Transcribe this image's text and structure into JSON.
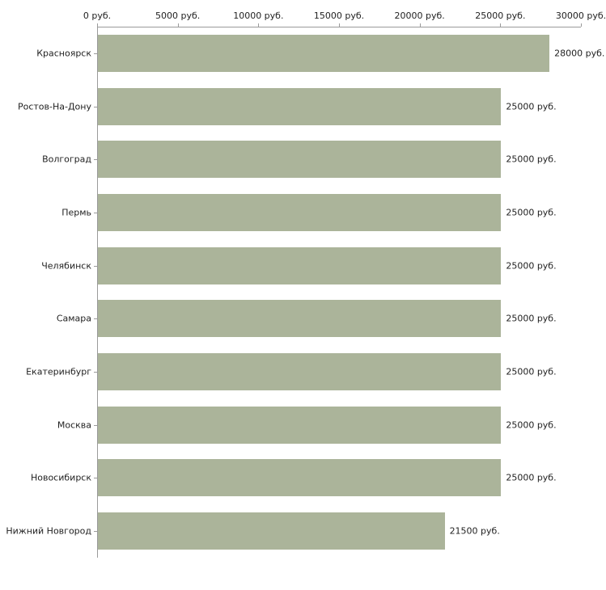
{
  "chart_data": {
    "type": "bar",
    "orientation": "horizontal",
    "title": "",
    "xlabel": "",
    "ylabel": "",
    "categories": [
      "Красноярск",
      "Ростов-На-Дону",
      "Волгоград",
      "Пермь",
      "Челябинск",
      "Самара",
      "Екатеринбург",
      "Москва",
      "Новосибирск",
      "Нижний Новгород"
    ],
    "values": [
      28000,
      25000,
      25000,
      25000,
      25000,
      25000,
      25000,
      25000,
      25000,
      21500
    ],
    "value_labels": [
      "28000 руб.",
      "25000 руб.",
      "25000 руб.",
      "25000 руб.",
      "25000 руб.",
      "25000 руб.",
      "25000 руб.",
      "25000 руб.",
      "25000 руб.",
      "21500 руб."
    ],
    "x_ticks": [
      0,
      5000,
      10000,
      15000,
      20000,
      25000,
      30000
    ],
    "x_tick_labels": [
      "0 руб.",
      "5000 руб.",
      "10000 руб.",
      "15000 руб.",
      "20000 руб.",
      "25000 руб.",
      "30000 руб."
    ],
    "xlim": [
      0,
      30000
    ],
    "grid": false,
    "legend": "none",
    "axis_position": "top",
    "bar_color": "#abb49a",
    "axis_color": "#9a9a9a",
    "text_color": "#222222",
    "background_color": "#ffffff"
  }
}
